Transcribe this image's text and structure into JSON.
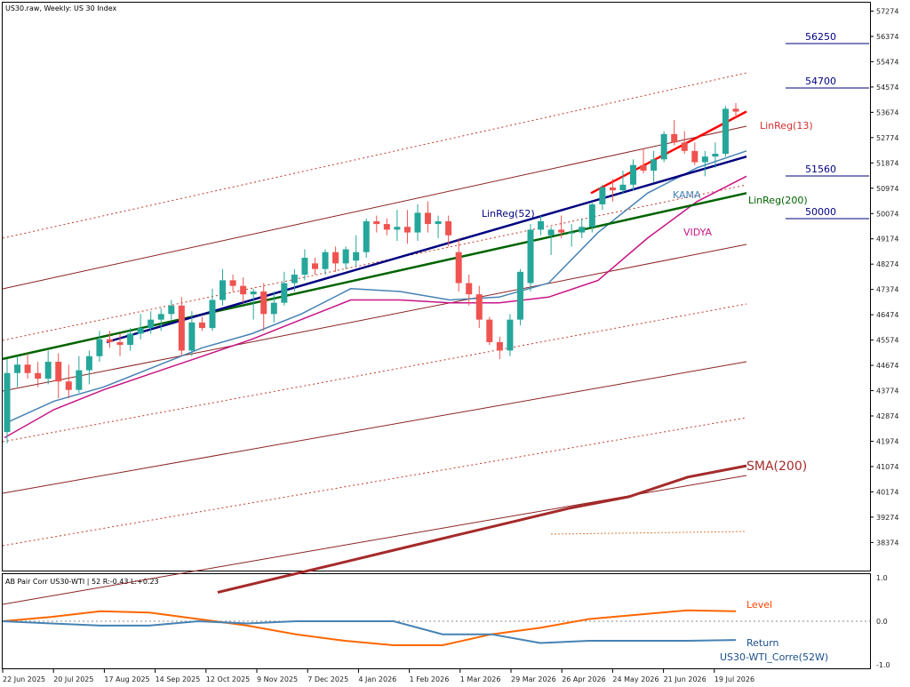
{
  "header": {
    "title": "US30.raw, Weekly:  US 30 Index"
  },
  "sub_header": {
    "title": "AB Pair Corr US30-WTI | 52 R:-0.43 L:+0.23"
  },
  "colors": {
    "bull": "#26a69a",
    "bear": "#ef5350",
    "sma": "#a52a2a",
    "kama": "#4682b4",
    "vidya": "#c71585",
    "linreg13": "#ff0000",
    "linreg52": "#000080",
    "linreg200": "#006400",
    "level": "#ff6600",
    "return": "#4682b4"
  },
  "chart_data": [
    {
      "type": "candlestick",
      "symbol": "US30.raw",
      "timeframe": "Weekly",
      "ylim": [
        37374,
        57574
      ],
      "y_ticks": [
        38374,
        39274,
        40174,
        41074,
        41974,
        42874,
        43774,
        44674,
        45574,
        46474,
        47374,
        48274,
        49174,
        50074,
        50974,
        51874,
        52774,
        53674,
        54574,
        55474,
        56374,
        57274
      ],
      "x_ticks": [
        "22 Jun 2025",
        "20 Jul 2025",
        "17 Aug 2025",
        "14 Sep 2025",
        "12 Oct 2025",
        "9 Nov 2025",
        "7 Dec 2025",
        "4 Jan 2026",
        "1 Feb 2026",
        "1 Mar 2026",
        "29 Mar 2026",
        "26 Apr 2026",
        "24 May 2026",
        "21 Jun 2026",
        "19 Jul 2026"
      ],
      "candles": [
        [
          42300,
          44900,
          41900,
          44400
        ],
        [
          44400,
          45000,
          43900,
          44700
        ],
        [
          44700,
          45100,
          44200,
          44400
        ],
        [
          44400,
          44800,
          43900,
          44200
        ],
        [
          44200,
          45200,
          44000,
          44800
        ],
        [
          44800,
          45100,
          43500,
          44100
        ],
        [
          44100,
          44700,
          43500,
          43800
        ],
        [
          43800,
          45000,
          43700,
          44500
        ],
        [
          44500,
          45200,
          44000,
          45000
        ],
        [
          45000,
          45900,
          44800,
          45600
        ],
        [
          45600,
          45900,
          45300,
          45500
        ],
        [
          45500,
          45800,
          45000,
          45400
        ],
        [
          45400,
          46000,
          45200,
          45800
        ],
        [
          45800,
          46500,
          45600,
          46000
        ],
        [
          46000,
          46600,
          45800,
          46300
        ],
        [
          46300,
          46700,
          45900,
          46500
        ],
        [
          46500,
          47000,
          46300,
          46800
        ],
        [
          46800,
          47100,
          45000,
          45200
        ],
        [
          45200,
          46600,
          45000,
          46200
        ],
        [
          46200,
          46400,
          45900,
          46000
        ],
        [
          46000,
          47400,
          45900,
          47000
        ],
        [
          47000,
          48100,
          46800,
          47700
        ],
        [
          47700,
          47900,
          47300,
          47500
        ],
        [
          47500,
          47800,
          46900,
          47200
        ],
        [
          47200,
          47400,
          46300,
          47300
        ],
        [
          47300,
          47600,
          45900,
          46500
        ],
        [
          46500,
          47300,
          46200,
          46900
        ],
        [
          46900,
          48000,
          46800,
          47600
        ],
        [
          47600,
          48100,
          47300,
          47900
        ],
        [
          47900,
          48800,
          47700,
          48500
        ],
        [
          48300,
          48500,
          47900,
          48100
        ],
        [
          48100,
          48800,
          47900,
          48700
        ],
        [
          48700,
          48900,
          48000,
          48300
        ],
        [
          48300,
          48900,
          48100,
          48800
        ],
        [
          48400,
          49300,
          48200,
          48700
        ],
        [
          48700,
          49900,
          48500,
          49800
        ],
        [
          49800,
          50000,
          49400,
          49700
        ],
        [
          49700,
          49900,
          49300,
          49500
        ],
        [
          49500,
          50200,
          49100,
          49600
        ],
        [
          49600,
          50200,
          49000,
          49400
        ],
        [
          49400,
          50400,
          49100,
          50100
        ],
        [
          50100,
          50500,
          49400,
          49700
        ],
        [
          49700,
          50000,
          49200,
          49800
        ],
        [
          49800,
          50000,
          48900,
          49300
        ],
        [
          48700,
          49200,
          47300,
          47600
        ],
        [
          47600,
          47900,
          46800,
          47200
        ],
        [
          47200,
          47500,
          46000,
          46300
        ],
        [
          46300,
          46400,
          45400,
          45500
        ],
        [
          45500,
          45700,
          44900,
          45200
        ],
        [
          45200,
          46500,
          45000,
          46300
        ],
        [
          46300,
          48100,
          46100,
          48000
        ],
        [
          47600,
          49700,
          47300,
          49500
        ],
        [
          49500,
          50000,
          49300,
          49800
        ],
        [
          49300,
          49600,
          48600,
          49500
        ],
        [
          49500,
          50000,
          49200,
          49400
        ],
        [
          49400,
          49700,
          48900,
          49400
        ],
        [
          49400,
          49900,
          49200,
          49600
        ],
        [
          49600,
          50500,
          49400,
          50400
        ],
        [
          50400,
          51100,
          50200,
          51000
        ],
        [
          51000,
          51300,
          50500,
          50900
        ],
        [
          50900,
          51600,
          50800,
          51100
        ],
        [
          51100,
          52000,
          50900,
          51800
        ],
        [
          51800,
          52400,
          51500,
          51600
        ],
        [
          51600,
          52300,
          51200,
          52000
        ],
        [
          52000,
          53000,
          51900,
          52900
        ],
        [
          52900,
          53400,
          52500,
          52600
        ],
        [
          52600,
          53000,
          52200,
          52300
        ],
        [
          52300,
          52600,
          51800,
          51900
        ],
        [
          51900,
          52300,
          51400,
          52100
        ],
        [
          52100,
          52600,
          51700,
          52200
        ],
        [
          52200,
          53900,
          52100,
          53800
        ],
        [
          53800,
          54000,
          53500,
          53700
        ]
      ],
      "series": [
        {
          "name": "SMA(200)",
          "y": [
            36600,
            37100,
            37600,
            38100,
            38600,
            39100,
            39600,
            40000,
            40700,
            41100
          ]
        },
        {
          "name": "KAMA",
          "y": [
            42600,
            43400,
            43900,
            44600,
            45300,
            45800,
            46500,
            47400,
            47300,
            47000,
            47100,
            47600,
            49400,
            50800,
            51700,
            52300
          ]
        },
        {
          "name": "VIDYA",
          "y": [
            42100,
            43100,
            43800,
            44400,
            45000,
            45600,
            46300,
            47000,
            47000,
            46900,
            46900,
            47100,
            47700,
            49200,
            50500,
            51400
          ]
        },
        {
          "name": "LinReg(13)",
          "y": [
            50800,
            53700
          ]
        },
        {
          "name": "LinReg(52)",
          "y": [
            45500,
            52100
          ]
        },
        {
          "name": "LinReg(200)",
          "y": [
            44900,
            50800
          ]
        }
      ],
      "levels": [
        "56250",
        "54700",
        "51560",
        "50000"
      ]
    },
    {
      "type": "line",
      "name": "AB Pair Corr US30-WTI",
      "ylim": [
        -1.0,
        1.0
      ],
      "y_ticks": [
        "1.0",
        "0.0",
        "-1.0"
      ],
      "series": [
        {
          "name": "Level",
          "y": [
            0.0,
            0.1,
            0.23,
            0.2,
            0.05,
            -0.1,
            -0.3,
            -0.45,
            -0.55,
            -0.55,
            -0.3,
            -0.15,
            0.05,
            0.15,
            0.25,
            0.23
          ]
        },
        {
          "name": "Return",
          "y": [
            0.0,
            -0.05,
            -0.1,
            -0.1,
            0.0,
            -0.05,
            0.0,
            0.0,
            0.0,
            -0.3,
            -0.3,
            -0.5,
            -0.45,
            -0.45,
            -0.45,
            -0.43
          ]
        }
      ],
      "legend_label": "US30-WTI_Corre(52W)"
    }
  ]
}
